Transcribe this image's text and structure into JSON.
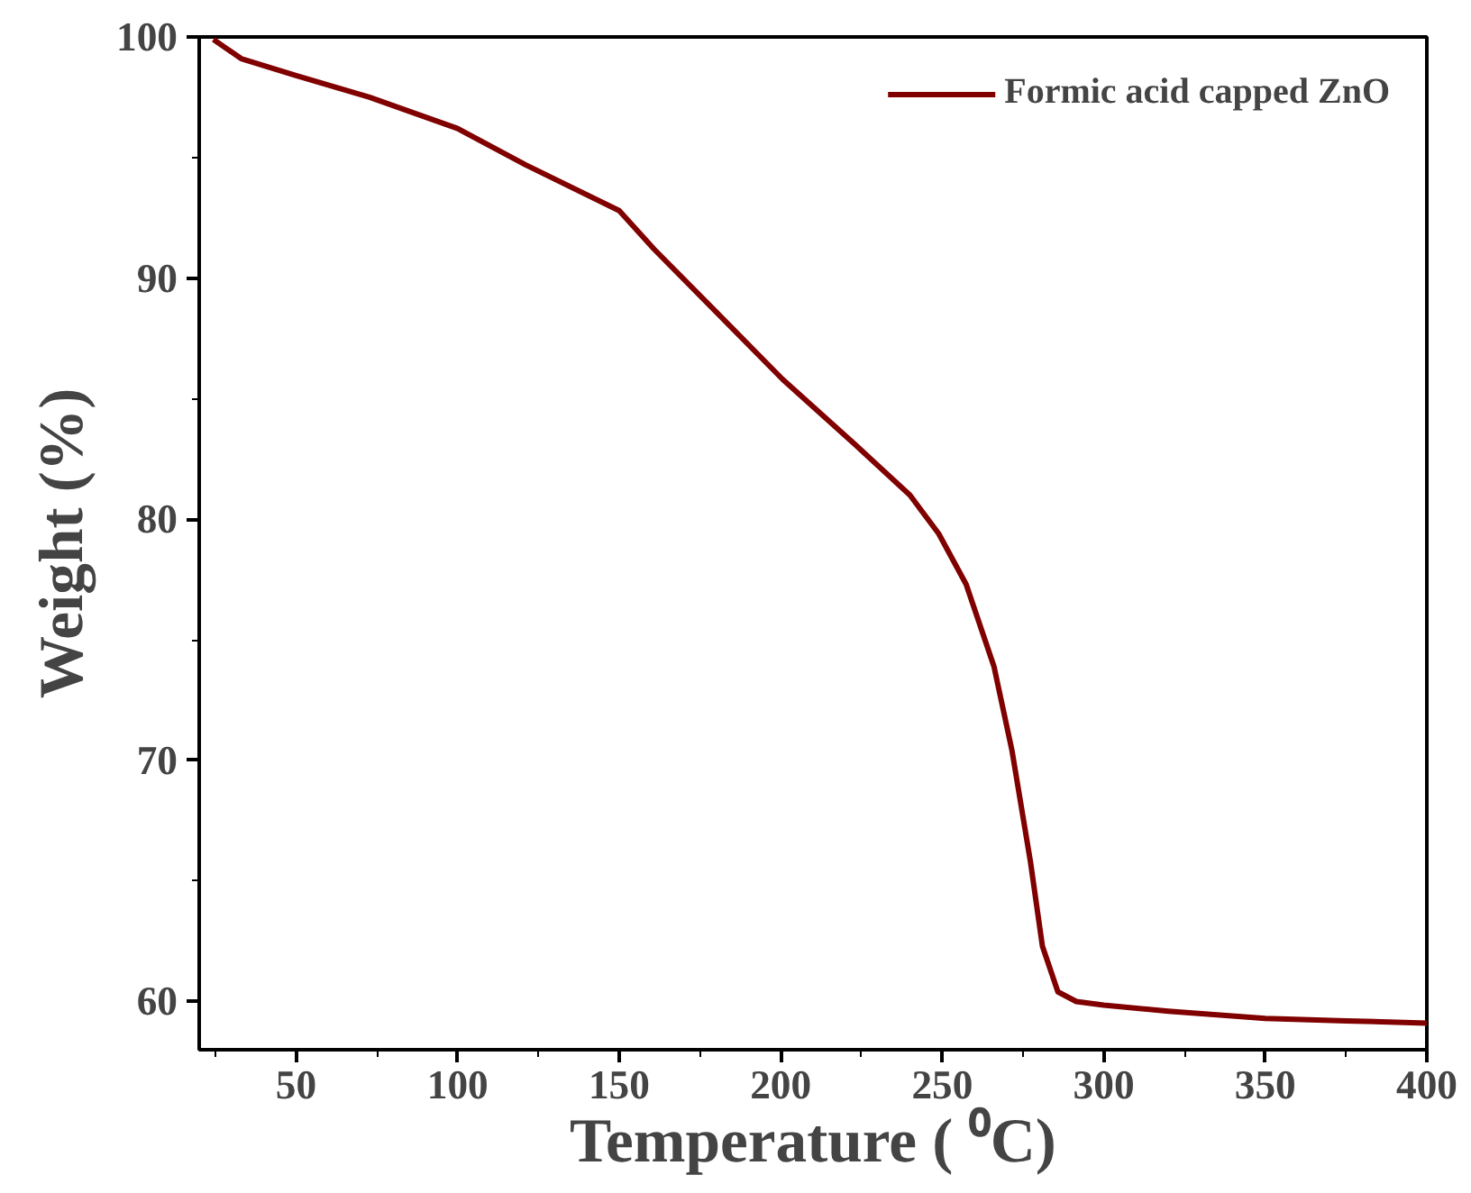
{
  "chart_data": {
    "type": "line",
    "xlabel": "Temperature ( ⁰C)",
    "ylabel": "Weight (%)",
    "xlim": [
      20,
      400
    ],
    "ylim": [
      58,
      100
    ],
    "xticks": [
      50,
      100,
      150,
      200,
      250,
      300,
      350,
      400
    ],
    "yticks": [
      60,
      70,
      80,
      90,
      100
    ],
    "grid": false,
    "legend": "top right",
    "line_style": "solid",
    "marker": "none",
    "x": [
      24.4,
      33,
      50,
      72.7,
      100,
      121,
      150,
      160.8,
      177.8,
      200.6,
      223,
      240,
      248.9,
      257.4,
      266,
      271.6,
      277.3,
      281,
      285.8,
      291.5,
      300,
      320,
      350,
      375,
      400
    ],
    "series": [
      {
        "name": "Formic acid capped ZnO",
        "color": "#800000",
        "values": [
          99.9,
          99.1,
          98.4,
          97.5,
          96.2,
          94.7,
          92.8,
          91.2,
          88.9,
          85.8,
          83.1,
          81.0,
          79.4,
          77.3,
          73.9,
          70.4,
          65.8,
          62.3,
          60.4,
          60.0,
          59.85,
          59.6,
          59.3,
          59.2,
          59.1
        ]
      }
    ]
  }
}
